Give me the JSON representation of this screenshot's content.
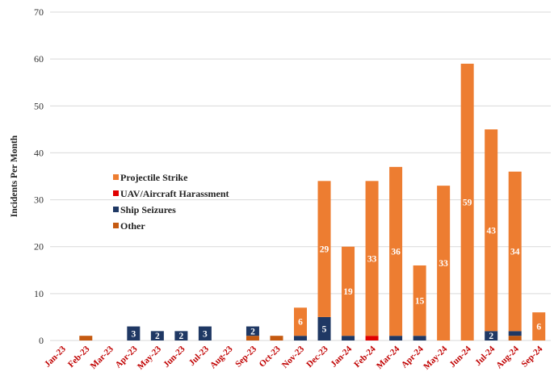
{
  "chart_data": {
    "type": "bar",
    "stacked": true,
    "title": "",
    "xlabel": "",
    "ylabel": "Incidents Per Month",
    "ylim": [
      0,
      70
    ],
    "yticks": [
      0,
      10,
      20,
      30,
      40,
      50,
      60,
      70
    ],
    "grid": true,
    "legend_position": "center-left",
    "categories": [
      "Jan-23",
      "Feb-23",
      "Mar-23",
      "Apr-23",
      "May-23",
      "Jun-23",
      "Jul-23",
      "Aug-23",
      "Sep-23",
      "Oct-23",
      "Nov-23",
      "Dec-23",
      "Jan-24",
      "Feb-24",
      "Mar-24",
      "Apr-24",
      "May-24",
      "Jun-24",
      "Jul-24",
      "Aug-24",
      "Sep-24"
    ],
    "series": [
      {
        "name": "Other",
        "color": "#c55a11",
        "values": [
          0,
          1,
          0,
          0,
          0,
          0,
          0,
          0,
          1,
          1,
          0,
          0,
          0,
          0,
          0,
          0,
          0,
          0,
          0,
          1,
          0
        ]
      },
      {
        "name": "Ship Seizures",
        "color": "#1f3864",
        "values": [
          0,
          0,
          0,
          3,
          2,
          2,
          3,
          0,
          2,
          0,
          1,
          5,
          1,
          0,
          1,
          1,
          0,
          0,
          2,
          1,
          0
        ]
      },
      {
        "name": "UAV/Aircraft Harassment",
        "color": "#e00000",
        "values": [
          0,
          0,
          0,
          0,
          0,
          0,
          0,
          0,
          0,
          0,
          0,
          0,
          0,
          1,
          0,
          0,
          0,
          0,
          0,
          0,
          0
        ]
      },
      {
        "name": "Projectile Strike",
        "color": "#ed7d31",
        "values": [
          0,
          0,
          0,
          0,
          0,
          0,
          0,
          0,
          0,
          0,
          6,
          29,
          19,
          33,
          36,
          15,
          33,
          59,
          43,
          34,
          6
        ]
      }
    ],
    "data_labels": [
      {
        "category": "Apr-23",
        "series": "Ship Seizures",
        "text": "3"
      },
      {
        "category": "May-23",
        "series": "Ship Seizures",
        "text": "2"
      },
      {
        "category": "Jun-23",
        "series": "Ship Seizures",
        "text": "2"
      },
      {
        "category": "Jul-23",
        "series": "Ship Seizures",
        "text": "3"
      },
      {
        "category": "Sep-23",
        "series": "Ship Seizures",
        "text": "2"
      },
      {
        "category": "Dec-23",
        "series": "Ship Seizures",
        "text": "5"
      },
      {
        "category": "Jul-24",
        "series": "Ship Seizures",
        "text": "2"
      },
      {
        "category": "Nov-23",
        "series": "Projectile Strike",
        "text": "6"
      },
      {
        "category": "Dec-23",
        "series": "Projectile Strike",
        "text": "29"
      },
      {
        "category": "Jan-24",
        "series": "Projectile Strike",
        "text": "19"
      },
      {
        "category": "Feb-24",
        "series": "Projectile Strike",
        "text": "33"
      },
      {
        "category": "Mar-24",
        "series": "Projectile Strike",
        "text": "36"
      },
      {
        "category": "Apr-24",
        "series": "Projectile Strike",
        "text": "15"
      },
      {
        "category": "May-24",
        "series": "Projectile Strike",
        "text": "33"
      },
      {
        "category": "Jun-24",
        "series": "Projectile Strike",
        "text": "59"
      },
      {
        "category": "Jul-24",
        "series": "Projectile Strike",
        "text": "43"
      },
      {
        "category": "Aug-24",
        "series": "Projectile Strike",
        "text": "34"
      },
      {
        "category": "Sep-24",
        "series": "Projectile Strike",
        "text": "6"
      }
    ],
    "legend": [
      "Projectile Strike",
      "UAV/Aircraft Harassment",
      "Ship Seizures",
      "Other"
    ]
  }
}
